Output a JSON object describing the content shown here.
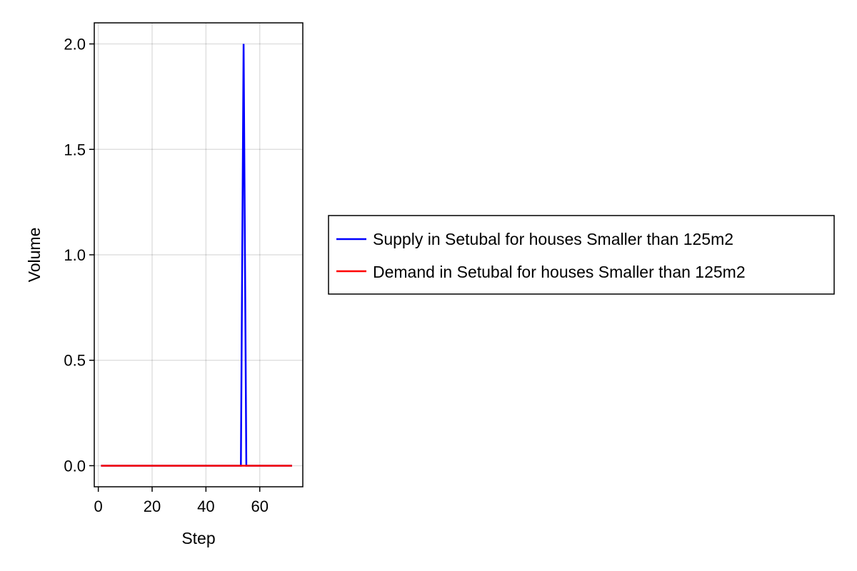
{
  "chart_data": {
    "type": "line",
    "title": "",
    "xlabel": "Step",
    "ylabel": "Volume",
    "xlim": [
      -1.5,
      76
    ],
    "ylim": [
      -0.1,
      2.1
    ],
    "x_ticks": [
      0,
      20,
      40,
      60
    ],
    "x_tick_labels": [
      "0",
      "20",
      "40",
      "60"
    ],
    "y_ticks": [
      0.0,
      0.5,
      1.0,
      1.5,
      2.0
    ],
    "y_tick_labels": [
      "0.0",
      "0.5",
      "1.0",
      "1.5",
      "2.0"
    ],
    "grid": true,
    "legend_position": "right",
    "series": [
      {
        "name": "Supply in Setubal for houses Smaller than 125m2",
        "color": "#0000ff",
        "x": [
          1,
          53,
          54,
          55,
          72
        ],
        "y": [
          0,
          0,
          2,
          0,
          0
        ]
      },
      {
        "name": "Demand in Setubal for houses Smaller than 125m2",
        "color": "#ff0000",
        "x": [
          1,
          72
        ],
        "y": [
          0,
          0
        ]
      }
    ]
  }
}
